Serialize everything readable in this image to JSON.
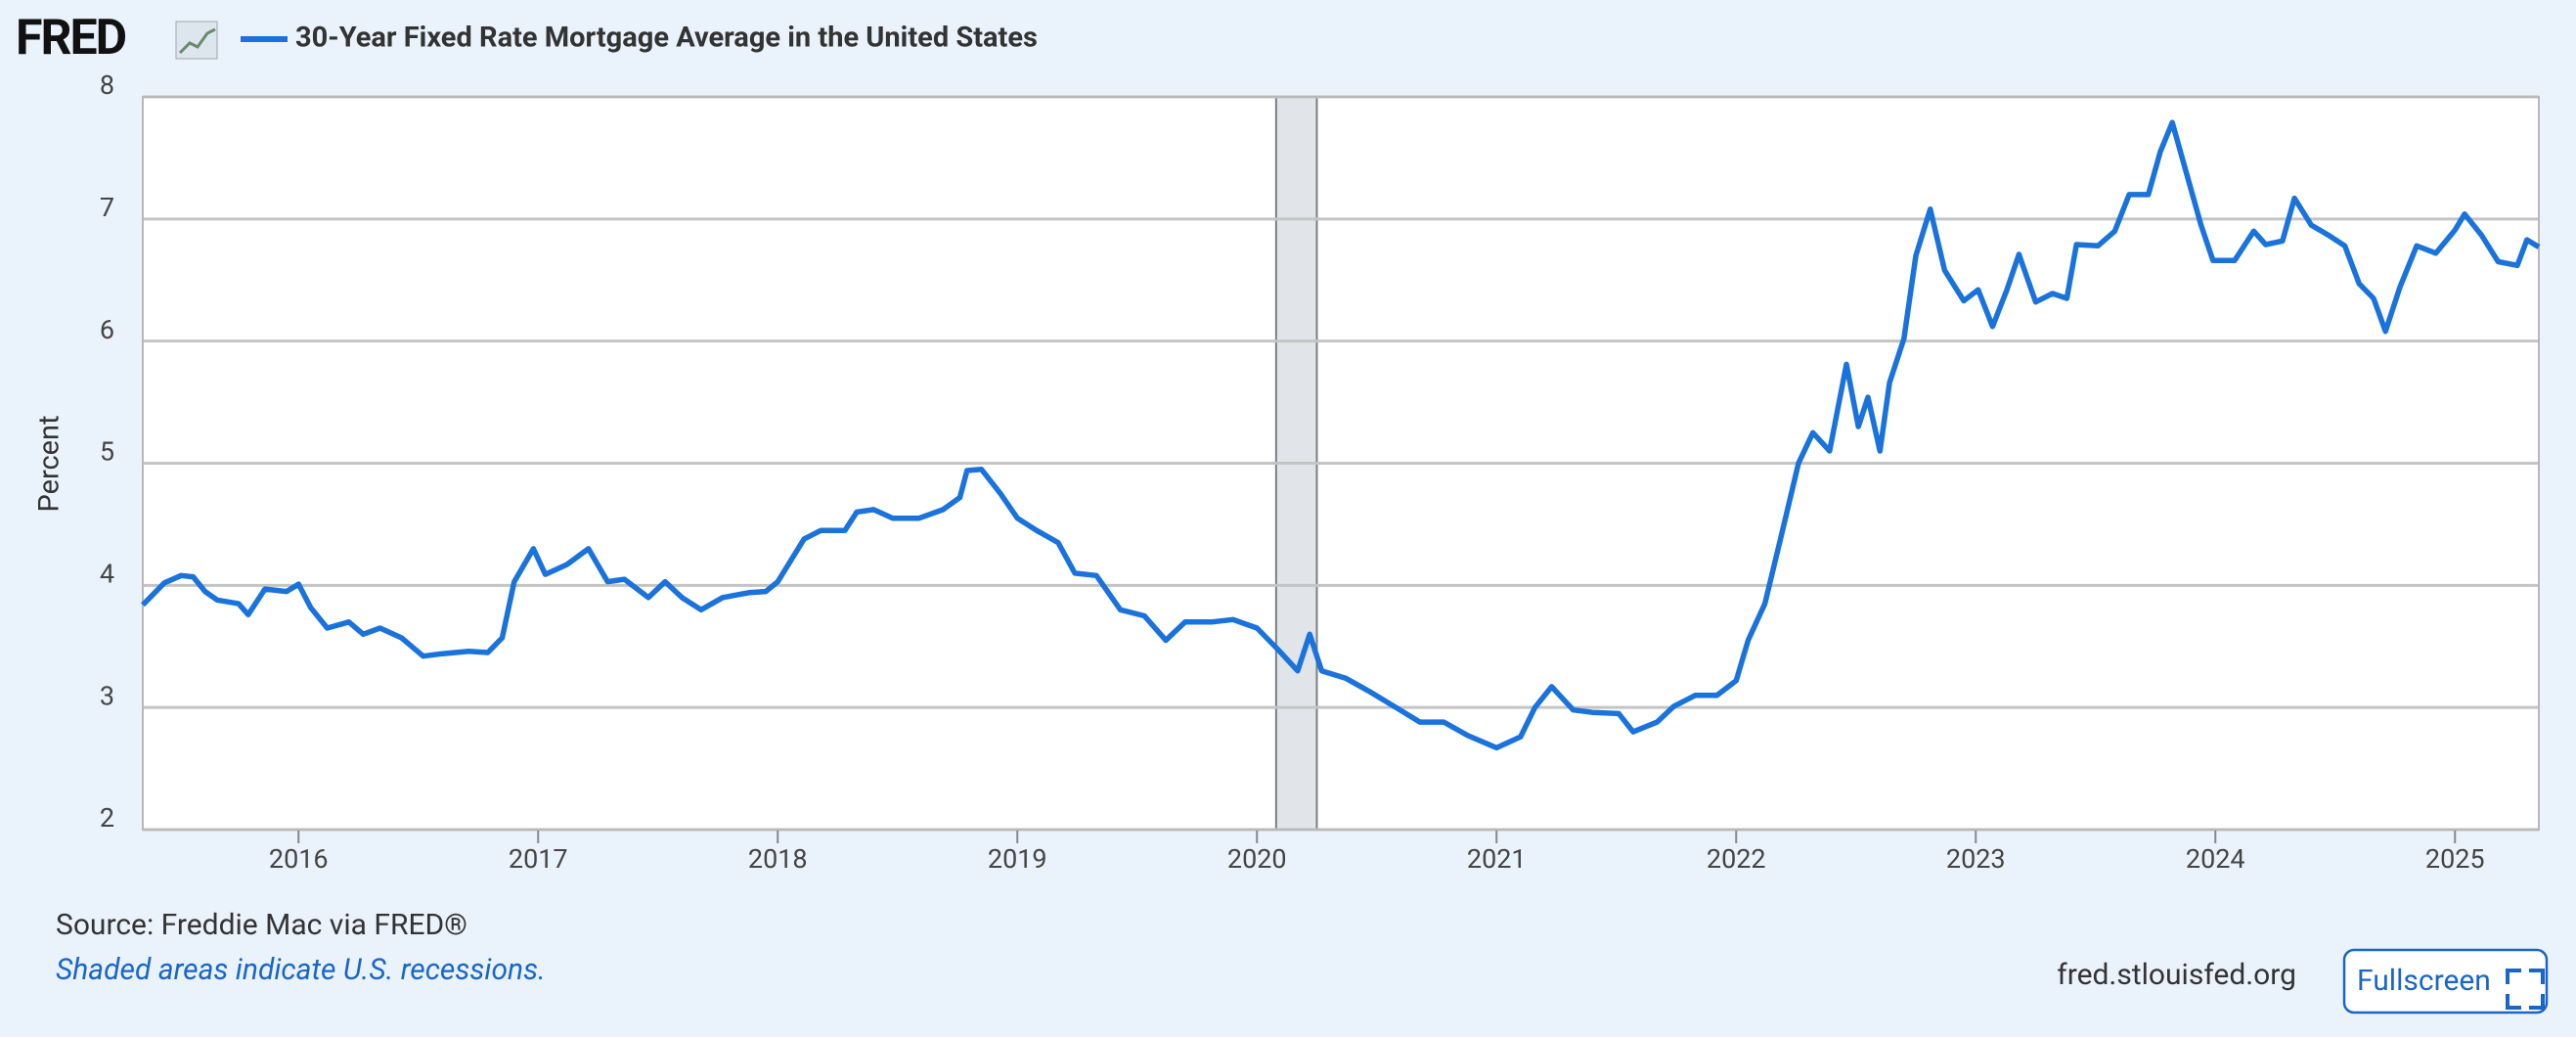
{
  "chart_data": {
    "type": "line",
    "logo": "FRED",
    "y_label": "Percent",
    "source": "Source: Freddie Mac via FRED®",
    "note": "Shaded areas indicate U.S. recessions.",
    "site": "fred.stlouisfed.org",
    "button": "Fullscreen",
    "xlim": [
      2015.35,
      2025.35
    ],
    "xticks": [
      2016,
      2017,
      2018,
      2019,
      2020,
      2021,
      2022,
      2023,
      2024,
      2025
    ],
    "ylim": [
      2,
      8
    ],
    "yticks": [
      2,
      3,
      4,
      5,
      6,
      7,
      8
    ],
    "grid": true,
    "recessions": [
      {
        "start": 2020.08,
        "end": 2020.25
      }
    ],
    "x": [
      2015.35,
      2015.44,
      2015.51,
      2015.56,
      2015.61,
      2015.66,
      2015.75,
      2015.79,
      2015.86,
      2015.95,
      2016.0,
      2016.05,
      2016.12,
      2016.21,
      2016.27,
      2016.34,
      2016.43,
      2016.52,
      2016.6,
      2016.71,
      2016.79,
      2016.85,
      2016.9,
      2016.98,
      2017.03,
      2017.12,
      2017.21,
      2017.29,
      2017.36,
      2017.46,
      2017.53,
      2017.6,
      2017.68,
      2017.77,
      2017.88,
      2017.95,
      2018.0,
      2018.11,
      2018.18,
      2018.28,
      2018.33,
      2018.4,
      2018.48,
      2018.59,
      2018.69,
      2018.76,
      2018.79,
      2018.85,
      2018.93,
      2019.0,
      2019.08,
      2019.17,
      2019.24,
      2019.33,
      2019.43,
      2019.53,
      2019.62,
      2019.7,
      2019.81,
      2019.9,
      2020.0,
      2020.09,
      2020.17,
      2020.22,
      2020.27,
      2020.37,
      2020.47,
      2020.58,
      2020.68,
      2020.78,
      2020.88,
      2021.0,
      2021.1,
      2021.16,
      2021.23,
      2021.32,
      2021.4,
      2021.51,
      2021.57,
      2021.67,
      2021.74,
      2021.83,
      2021.92,
      2022.0,
      2022.05,
      2022.12,
      2022.19,
      2022.26,
      2022.32,
      2022.39,
      2022.46,
      2022.51,
      2022.55,
      2022.6,
      2022.64,
      2022.7,
      2022.75,
      2022.81,
      2022.87,
      2022.95,
      2023.01,
      2023.07,
      2023.13,
      2023.18,
      2023.25,
      2023.32,
      2023.38,
      2023.42,
      2023.51,
      2023.58,
      2023.64,
      2023.72,
      2023.77,
      2023.82,
      2023.87,
      2023.94,
      2023.99,
      2024.08,
      2024.16,
      2024.21,
      2024.28,
      2024.33,
      2024.4,
      2024.47,
      2024.54,
      2024.6,
      2024.66,
      2024.71,
      2024.77,
      2024.84,
      2024.92,
      2025.0,
      2025.04,
      2025.11,
      2025.18,
      2025.26,
      2025.3,
      2025.35
    ],
    "series": [
      {
        "name": "30-Year Fixed Rate Mortgage Average in the United States",
        "color": "#1a72dd",
        "values": [
          3.84,
          4.02,
          4.08,
          4.07,
          3.95,
          3.88,
          3.85,
          3.76,
          3.97,
          3.95,
          4.01,
          3.82,
          3.65,
          3.7,
          3.6,
          3.65,
          3.57,
          3.42,
          3.44,
          3.46,
          3.45,
          3.57,
          4.03,
          4.3,
          4.09,
          4.17,
          4.3,
          4.03,
          4.05,
          3.9,
          4.03,
          3.9,
          3.8,
          3.9,
          3.94,
          3.95,
          4.03,
          4.38,
          4.45,
          4.45,
          4.6,
          4.62,
          4.55,
          4.55,
          4.62,
          4.72,
          4.94,
          4.95,
          4.75,
          4.55,
          4.45,
          4.35,
          4.1,
          4.08,
          3.8,
          3.75,
          3.55,
          3.7,
          3.7,
          3.72,
          3.65,
          3.47,
          3.3,
          3.6,
          3.3,
          3.24,
          3.13,
          3.0,
          2.88,
          2.88,
          2.77,
          2.67,
          2.76,
          3.0,
          3.17,
          2.98,
          2.96,
          2.95,
          2.8,
          2.88,
          3.01,
          3.1,
          3.1,
          3.22,
          3.55,
          3.85,
          4.42,
          5.0,
          5.25,
          5.1,
          5.81,
          5.3,
          5.54,
          5.1,
          5.66,
          6.02,
          6.7,
          7.08,
          6.58,
          6.33,
          6.42,
          6.12,
          6.42,
          6.71,
          6.32,
          6.39,
          6.35,
          6.79,
          6.78,
          6.9,
          7.2,
          7.2,
          7.55,
          7.79,
          7.44,
          6.95,
          6.66,
          6.66,
          6.9,
          6.79,
          6.82,
          7.17,
          6.95,
          6.87,
          6.78,
          6.47,
          6.35,
          6.08,
          6.44,
          6.78,
          6.72,
          6.91,
          7.04,
          6.87,
          6.65,
          6.62,
          6.83,
          6.77
        ]
      }
    ]
  }
}
